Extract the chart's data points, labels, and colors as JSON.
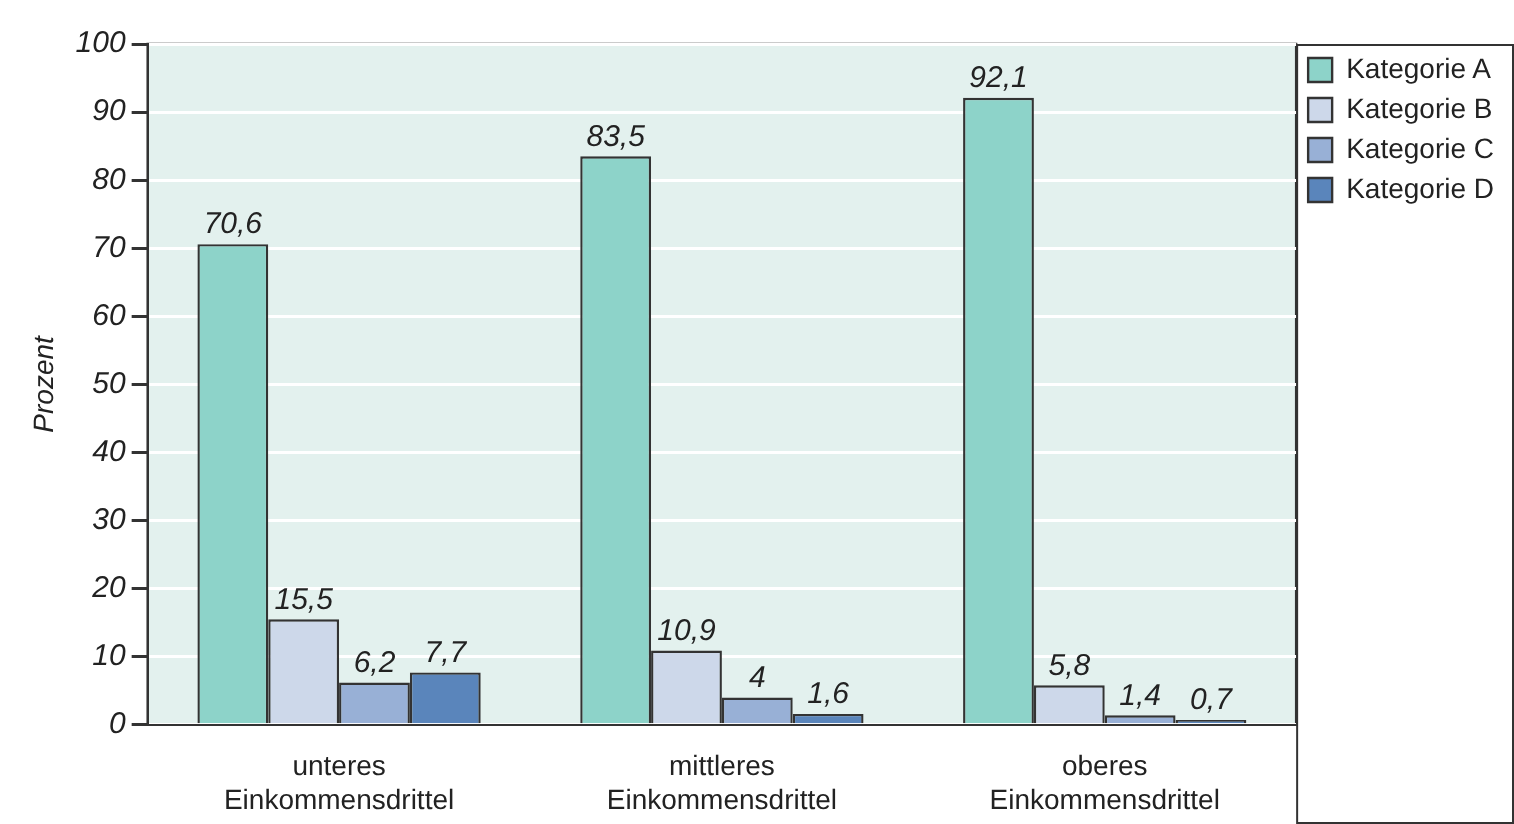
{
  "chart_data": {
    "type": "bar",
    "ylabel": "Prozent",
    "categories": [
      "unteres Einkommensdrittel",
      "mittleres Einkommensdrittel",
      "oberes Einkommensdrittel"
    ],
    "series": [
      {
        "name": "Kategorie A",
        "color": "#8dd3c9",
        "values": [
          70.6,
          83.5,
          92.1
        ],
        "value_labels": [
          "70,6",
          "83,5",
          "92,1"
        ]
      },
      {
        "name": "Kategorie B",
        "color": "#cdd8ea",
        "values": [
          15.5,
          10.9,
          5.8
        ],
        "value_labels": [
          "15,5",
          "10,9",
          "5,8"
        ]
      },
      {
        "name": "Kategorie C",
        "color": "#98b0d6",
        "values": [
          6.2,
          4,
          1.4
        ],
        "value_labels": [
          "6,2",
          "4",
          "1,4"
        ]
      },
      {
        "name": "Kategorie D",
        "color": "#5a85bb",
        "values": [
          7.7,
          1.6,
          0.7
        ],
        "value_labels": [
          "7,7",
          "1,6",
          "0,7"
        ]
      }
    ],
    "ylim": [
      0,
      100
    ],
    "yticks": [
      0,
      10,
      20,
      30,
      40,
      50,
      60,
      70,
      80,
      90,
      100
    ],
    "grid": "y",
    "legend": "top right"
  }
}
